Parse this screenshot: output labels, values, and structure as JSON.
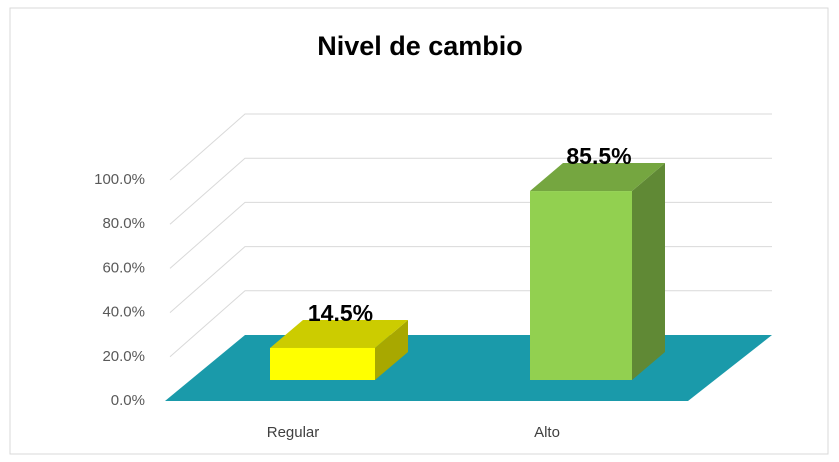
{
  "chart_data": {
    "type": "bar3d",
    "title": "Nivel de cambio",
    "categories": [
      "Regular",
      "Alto"
    ],
    "values": [
      14.5,
      85.5
    ],
    "value_labels": [
      "14.5%",
      "85.5%"
    ],
    "colors": [
      "#ffff00",
      "#92d050"
    ],
    "floor_color": "#1a9aaa",
    "ylim": [
      0,
      100
    ],
    "yticks": [
      {
        "value": 0,
        "label": "0.0%"
      },
      {
        "value": 20,
        "label": "20.0%"
      },
      {
        "value": 40,
        "label": "40.0%"
      },
      {
        "value": 60,
        "label": "60.0%"
      },
      {
        "value": 80,
        "label": "80.0%"
      },
      {
        "value": 100,
        "label": "100.0%"
      }
    ],
    "grid": true
  }
}
